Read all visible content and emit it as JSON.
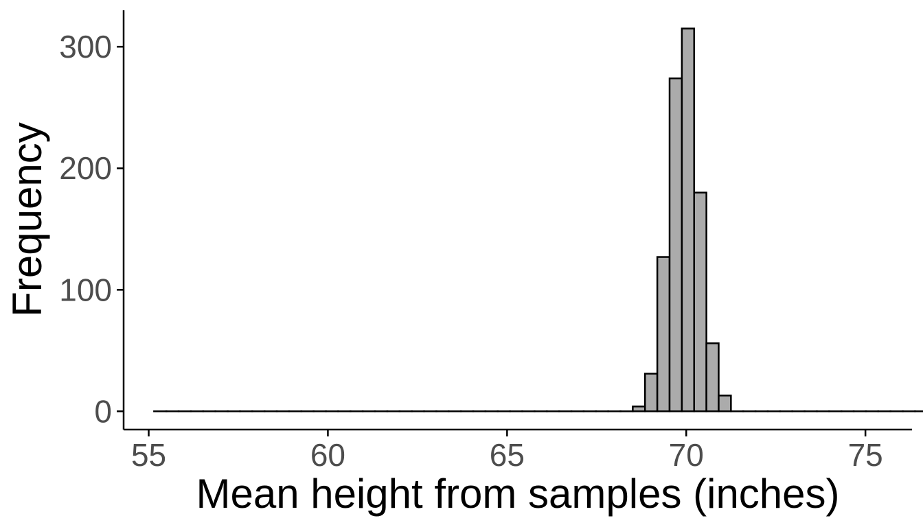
{
  "chart_data": {
    "type": "bar",
    "title": "",
    "xlabel": "Mean height from samples (inches)",
    "ylabel": "Frequency",
    "xlim": [
      54.3,
      76.3
    ],
    "ylim": [
      -15,
      330
    ],
    "x_ticks": [
      55,
      60,
      65,
      70,
      75
    ],
    "y_ticks": [
      0,
      100,
      200,
      300
    ],
    "grid": false,
    "bin_start": 55.15,
    "bin_width": 0.3425,
    "counts": [
      0,
      0,
      0,
      0,
      0,
      0,
      0,
      0,
      0,
      0,
      0,
      0,
      0,
      0,
      0,
      0,
      0,
      0,
      0,
      0,
      0,
      0,
      0,
      0,
      0,
      0,
      0,
      0,
      0,
      0,
      0,
      0,
      0,
      0,
      0,
      0,
      0,
      0,
      0,
      4,
      31,
      127,
      274,
      315,
      180,
      56,
      13,
      0,
      0,
      0,
      0,
      0,
      0,
      0,
      0,
      0,
      0,
      0,
      0,
      0,
      0,
      0,
      0,
      0,
      0,
      0,
      0,
      0,
      0,
      0,
      0,
      0,
      0,
      0,
      0,
      0,
      0,
      0,
      0,
      0,
      0,
      0,
      0,
      0,
      0,
      0,
      0
    ],
    "bar_fill": "#ababab",
    "bar_stroke": "#000000"
  }
}
